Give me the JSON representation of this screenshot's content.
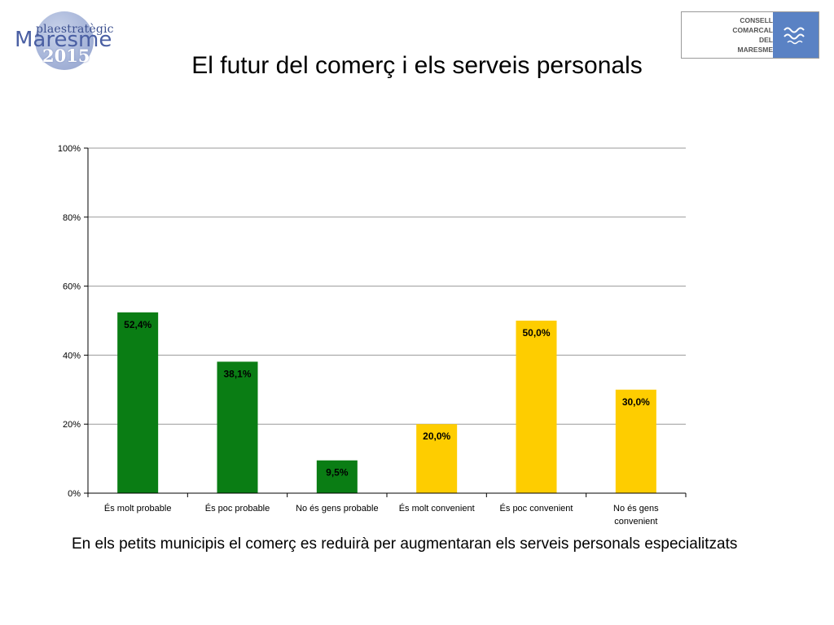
{
  "logos": {
    "left": {
      "pla": "plaestratègic",
      "name": "Maresme",
      "year": "2015"
    },
    "right": {
      "lines": [
        "CONSELL",
        "COMARCAL",
        "DEL",
        "MARESME"
      ]
    }
  },
  "title": "El futur del comerç i els serveis personals",
  "caption": "En els petits municipis el comerç es reduirà per augmentaran els serveis personals especialitzats",
  "colors": {
    "green": "#0a7d14",
    "yellow": "#fecd00",
    "grid": "#9a9a9a",
    "axis": "#000000"
  },
  "chart_data": {
    "type": "bar",
    "categories": [
      "És molt probable",
      "És poc probable",
      "No és gens probable",
      "És molt convenient",
      "És poc convenient",
      "No és gens convenient"
    ],
    "values": [
      52.4,
      38.1,
      9.5,
      20.0,
      50.0,
      30.0
    ],
    "value_labels": [
      "52,4%",
      "38,1%",
      "9,5%",
      "20,0%",
      "50,0%",
      "30,0%"
    ],
    "bar_colors": [
      "green",
      "green",
      "green",
      "yellow",
      "yellow",
      "yellow"
    ],
    "ylim": [
      0,
      100
    ],
    "yticks": [
      0,
      20,
      40,
      60,
      80,
      100
    ],
    "ytick_labels": [
      "0%",
      "20%",
      "40%",
      "60%",
      "80%",
      "100%"
    ],
    "grid": true,
    "legend": "none",
    "xlabel": "",
    "ylabel": ""
  }
}
